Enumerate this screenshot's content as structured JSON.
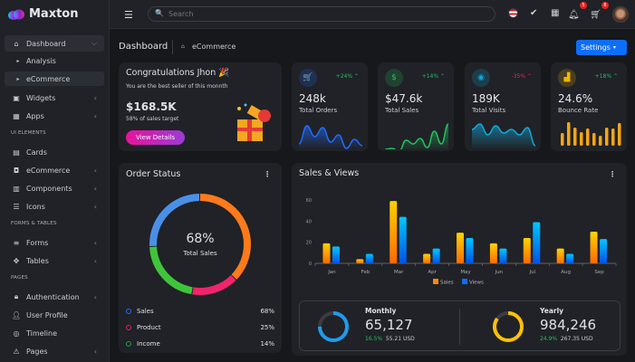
{
  "app": {
    "name": "Maxton"
  },
  "sidebar": {
    "items": [
      {
        "label": "Dashboard",
        "icon": "home-icon",
        "type": "item",
        "chev": "⌵",
        "active": true
      },
      {
        "label": "Analysis",
        "type": "sub"
      },
      {
        "label": "eCommerce",
        "type": "sub",
        "active": true
      },
      {
        "label": "Widgets",
        "icon": "widgets-icon",
        "type": "item",
        "chev": "‹"
      },
      {
        "label": "Apps",
        "icon": "apps-grid-icon",
        "type": "item",
        "chev": "‹"
      },
      {
        "label": "UI ELEMENTS",
        "type": "section"
      },
      {
        "label": "Cards",
        "icon": "cards-icon",
        "type": "item"
      },
      {
        "label": "eCommerce",
        "icon": "shopping-bag-icon",
        "type": "item",
        "chev": "‹"
      },
      {
        "label": "Components",
        "icon": "components-icon",
        "type": "item",
        "chev": "‹"
      },
      {
        "label": "Icons",
        "icon": "icons-icon",
        "type": "item",
        "chev": "‹"
      },
      {
        "label": "FORMS & TABLES",
        "type": "section"
      },
      {
        "label": "Forms",
        "icon": "forms-icon",
        "type": "item",
        "chev": "‹"
      },
      {
        "label": "Tables",
        "icon": "tables-icon",
        "type": "item",
        "chev": "‹"
      },
      {
        "label": "PAGES",
        "type": "section"
      },
      {
        "label": "Authentication",
        "icon": "lock-icon",
        "type": "item",
        "chev": "‹"
      },
      {
        "label": "User Profile",
        "icon": "user-icon",
        "type": "item"
      },
      {
        "label": "Timeline",
        "icon": "timeline-icon",
        "type": "item"
      },
      {
        "label": "Pages",
        "icon": "warning-icon",
        "type": "item",
        "chev": "‹"
      }
    ]
  },
  "header": {
    "search_placeholder": "Search",
    "notifications": "5",
    "cart": "8"
  },
  "breadcrumb": {
    "title": "Dashboard",
    "current": "eCommerce"
  },
  "settings_label": "Settings",
  "congrats": {
    "title": "Congratulations Jhon 🎉",
    "subtitle": "You are the best seller of this monnth",
    "value": "$168.5K",
    "note": "58% of sales target",
    "button": "View Details"
  },
  "stats": [
    {
      "value": "248k",
      "label": "Total Orders",
      "change": "+24%",
      "icon": "cart-icon",
      "glyph": "🛒",
      "color": "#1f6bff",
      "trend": "up"
    },
    {
      "value": "$47.6k",
      "label": "Total Sales",
      "change": "+14%",
      "icon": "dollar-icon",
      "glyph": "$",
      "color": "#21c35b",
      "trend": "up"
    },
    {
      "value": "189K",
      "label": "Total Visits",
      "change": "-35%",
      "icon": "eye-icon",
      "glyph": "◉",
      "color": "#12a8d8",
      "trend": "down"
    },
    {
      "value": "24.6%",
      "label": "Bounce Rate",
      "change": "+18%",
      "icon": "bar-chart-icon",
      "glyph": "▟",
      "color": "#f4b400",
      "trend": "up"
    }
  ],
  "order_status": {
    "title": "Order Status",
    "center_value": "68%",
    "center_label": "Total Sales",
    "legend": [
      {
        "label": "Sales",
        "value": "68%",
        "color": "#1f6bff"
      },
      {
        "label": "Product",
        "value": "25%",
        "color": "#e91e63"
      },
      {
        "label": "Income",
        "value": "14%",
        "color": "#17a34a"
      }
    ]
  },
  "chart_data": {
    "type": "bar",
    "title": "Sales & Views",
    "categories": [
      "Jan",
      "Feb",
      "Mar",
      "Apr",
      "May",
      "Jun",
      "Jul",
      "Aug",
      "Sep"
    ],
    "series": [
      {
        "name": "Sales",
        "values": [
          19,
          4,
          59,
          9,
          29,
          19,
          24,
          14,
          30
        ],
        "color": "#ff8a00"
      },
      {
        "name": "Views",
        "values": [
          16,
          9,
          44,
          14,
          24,
          14,
          39,
          9,
          23
        ],
        "color": "#0d6efd"
      }
    ],
    "ylim": [
      0,
      60
    ],
    "yticks": [
      0,
      20,
      40,
      60
    ],
    "legend": "bottom",
    "grid": false
  },
  "summary": [
    {
      "label": "Monthly",
      "value": "65,127",
      "pct": "16.5%",
      "usd": "55.21 USD",
      "fill": 0.75,
      "color": "#1e9bf0"
    },
    {
      "label": "Yearly",
      "value": "984,246",
      "pct": "24.9%",
      "usd": "267.35 USD",
      "fill": 0.85,
      "color": "#ffc107"
    }
  ]
}
